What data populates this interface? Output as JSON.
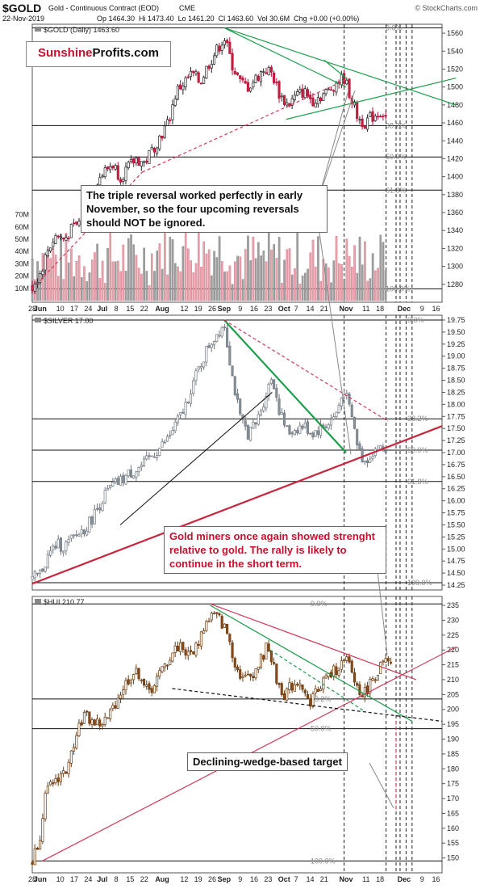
{
  "header": {
    "symbol": "$GOLD",
    "instrument": "Gold - Continuous Contract (EOD)",
    "exchange": "CME",
    "watermark": "© StockCharts.com",
    "date": "22-Nov-2019",
    "ohlc": "Op 1464.30  Hi 1473.40  Lo 1461.20  Cl 1463.60  Vol 30.6M  Chg +0.00 (+0.00%)"
  },
  "logo": {
    "part1": "Sunshine",
    "part2": "Profits.com",
    "part1_color": "#c8102e",
    "part2_color": "#111111"
  },
  "annotations": {
    "gold_note": "The triple reversal worked perfectly in early November, so the four upcoming reversals should NOT be ignored.",
    "miners_note": "Gold miners once again showed strenght relative to gold. The rally is likely to continue in the short term.",
    "wedge_note": "Declining-wedge-based target"
  },
  "x_axis": {
    "labels": [
      {
        "text": "28",
        "d": 0
      },
      {
        "text": "Jun",
        "d": 4
      },
      {
        "text": "10",
        "d": 14
      },
      {
        "text": "17",
        "d": 21
      },
      {
        "text": "24",
        "d": 28
      },
      {
        "text": "Jul",
        "d": 35
      },
      {
        "text": "8",
        "d": 42
      },
      {
        "text": "15",
        "d": 49
      },
      {
        "text": "22",
        "d": 56
      },
      {
        "text": "Aug",
        "d": 65
      },
      {
        "text": "12",
        "d": 76
      },
      {
        "text": "19",
        "d": 83
      },
      {
        "text": "26",
        "d": 90
      },
      {
        "text": "Sep",
        "d": 96
      },
      {
        "text": "9",
        "d": 104
      },
      {
        "text": "16",
        "d": 111
      },
      {
        "text": "23",
        "d": 118
      },
      {
        "text": "Oct",
        "d": 126
      },
      {
        "text": "7",
        "d": 132
      },
      {
        "text": "14",
        "d": 139
      },
      {
        "text": "21",
        "d": 146
      },
      {
        "text": "Nov",
        "d": 157
      },
      {
        "text": "11",
        "d": 167
      },
      {
        "text": "18",
        "d": 174
      },
      {
        "text": "Dec",
        "d": 186
      },
      {
        "text": "9",
        "d": 195
      },
      {
        "text": "16",
        "d": 202
      }
    ],
    "x_range": [
      0,
      205
    ],
    "vertical_dashed_lines": [
      156,
      177,
      182,
      184,
      187,
      190
    ]
  },
  "chart_data": [
    {
      "type": "candlestick",
      "panel": "gold",
      "legend": "$GOLD (Daily) 1463.60",
      "ylim": [
        1260,
        1570
      ],
      "yticks": [
        1280,
        1300,
        1320,
        1340,
        1360,
        1380,
        1400,
        1420,
        1440,
        1460,
        1480,
        1500,
        1520,
        1540,
        1560
      ],
      "volume_ticks": [
        "10M",
        "20M",
        "30M",
        "40M",
        "50M",
        "60M",
        "70M"
      ],
      "volume_range": [
        0,
        75
      ],
      "fib_levels": [
        {
          "label": "0.0%",
          "value": 1566
        },
        {
          "label": "38.2%",
          "value": 1457
        },
        {
          "label": "50.0%",
          "value": 1422
        },
        {
          "label": "61.8%",
          "value": 1385
        },
        {
          "label": "100.0%",
          "value": 1275
        }
      ],
      "path": [
        [
          0,
          1278
        ],
        [
          4,
          1292
        ],
        [
          8,
          1320
        ],
        [
          12,
          1335
        ],
        [
          16,
          1330
        ],
        [
          20,
          1342
        ],
        [
          24,
          1350
        ],
        [
          28,
          1375
        ],
        [
          32,
          1395
        ],
        [
          36,
          1405
        ],
        [
          40,
          1415
        ],
        [
          44,
          1400
        ],
        [
          48,
          1410
        ],
        [
          52,
          1420
        ],
        [
          56,
          1415
        ],
        [
          60,
          1430
        ],
        [
          64,
          1445
        ],
        [
          68,
          1460
        ],
        [
          72,
          1495
        ],
        [
          76,
          1505
        ],
        [
          80,
          1515
        ],
        [
          84,
          1505
        ],
        [
          88,
          1525
        ],
        [
          92,
          1540
        ],
        [
          96,
          1555
        ],
        [
          100,
          1525
        ],
        [
          104,
          1505
        ],
        [
          108,
          1500
        ],
        [
          112,
          1510
        ],
        [
          116,
          1520
        ],
        [
          120,
          1515
        ],
        [
          124,
          1490
        ],
        [
          128,
          1480
        ],
        [
          132,
          1490
        ],
        [
          136,
          1495
        ],
        [
          140,
          1485
        ],
        [
          144,
          1490
        ],
        [
          148,
          1495
        ],
        [
          152,
          1505
        ],
        [
          156,
          1510
        ],
        [
          160,
          1485
        ],
        [
          163,
          1465
        ],
        [
          166,
          1460
        ],
        [
          169,
          1465
        ],
        [
          172,
          1470
        ],
        [
          175,
          1472
        ],
        [
          178,
          1464
        ]
      ],
      "trendlines": [
        {
          "color": "#1a9e4a",
          "from": [
            96,
            1566
          ],
          "to": [
            157,
            1500
          ]
        },
        {
          "color": "#1a9e4a",
          "from": [
            96,
            1566
          ],
          "to": [
            212,
            1480
          ]
        },
        {
          "color": "#1a9e4a",
          "from": [
            127,
            1464
          ],
          "to": [
            212,
            1510
          ]
        },
        {
          "color": "#1a9e4a",
          "from": [
            146,
            1530
          ],
          "to": [
            157,
            1510
          ]
        },
        {
          "color": "#d23a5a",
          "dashed": true,
          "from": [
            55,
            1405
          ],
          "to": [
            157,
            1508
          ]
        },
        {
          "color": "#d23a5a",
          "dashed": true,
          "from": [
            0,
            1275
          ],
          "to": [
            55,
            1405
          ]
        }
      ]
    },
    {
      "type": "candlestick",
      "panel": "silver",
      "legend": "$SILVER 17.00",
      "ylim": [
        14.15,
        19.85
      ],
      "yticks": [
        14.25,
        14.5,
        14.75,
        15.0,
        15.25,
        15.5,
        15.75,
        16.0,
        16.25,
        16.5,
        16.75,
        17.0,
        17.25,
        17.5,
        17.75,
        18.0,
        18.25,
        18.5,
        18.75,
        19.0,
        19.25,
        19.5,
        19.75
      ],
      "fib_levels": [
        {
          "label": "0.0%",
          "value": 19.75
        },
        {
          "label": "38.2%",
          "value": 17.7
        },
        {
          "label": "50.0%",
          "value": 17.05
        },
        {
          "label": "61.8%",
          "value": 16.4
        },
        {
          "label": "100.0%",
          "value": 14.3
        }
      ],
      "path": [
        [
          0,
          14.35
        ],
        [
          4,
          14.5
        ],
        [
          8,
          14.85
        ],
        [
          12,
          15.1
        ],
        [
          16,
          15.05
        ],
        [
          20,
          15.2
        ],
        [
          24,
          15.35
        ],
        [
          28,
          15.5
        ],
        [
          32,
          15.8
        ],
        [
          36,
          16.1
        ],
        [
          40,
          16.3
        ],
        [
          44,
          16.4
        ],
        [
          48,
          16.55
        ],
        [
          52,
          16.65
        ],
        [
          56,
          16.75
        ],
        [
          60,
          16.95
        ],
        [
          64,
          17.1
        ],
        [
          68,
          17.3
        ],
        [
          72,
          17.6
        ],
        [
          76,
          17.9
        ],
        [
          80,
          18.4
        ],
        [
          84,
          18.8
        ],
        [
          88,
          19.2
        ],
        [
          92,
          19.45
        ],
        [
          96,
          19.7
        ],
        [
          100,
          18.6
        ],
        [
          104,
          17.7
        ],
        [
          108,
          17.4
        ],
        [
          112,
          17.6
        ],
        [
          116,
          18.1
        ],
        [
          120,
          18.6
        ],
        [
          124,
          17.8
        ],
        [
          128,
          17.4
        ],
        [
          132,
          17.5
        ],
        [
          136,
          17.55
        ],
        [
          140,
          17.4
        ],
        [
          144,
          17.5
        ],
        [
          148,
          17.6
        ],
        [
          152,
          17.8
        ],
        [
          156,
          18.3
        ],
        [
          160,
          17.7
        ],
        [
          163,
          17.1
        ],
        [
          166,
          16.8
        ],
        [
          169,
          16.95
        ],
        [
          172,
          17.1
        ],
        [
          175,
          17.05
        ],
        [
          178,
          17.0
        ]
      ],
      "trendlines": [
        {
          "color": "#1a9e4a",
          "width": 2.2,
          "from": [
            96,
            19.75
          ],
          "to": [
            157,
            17.0
          ]
        },
        {
          "color": "#c8263e",
          "width": 2.2,
          "from": [
            0,
            14.28
          ],
          "to": [
            205,
            17.55
          ]
        },
        {
          "color": "#111111",
          "width": 1,
          "from": [
            44,
            15.5
          ],
          "to": [
            120,
            18.25
          ]
        },
        {
          "color": "#d23a5a",
          "dashed": true,
          "from": [
            96,
            19.75
          ],
          "to": [
            178,
            17.65
          ]
        }
      ]
    },
    {
      "type": "candlestick",
      "panel": "hui",
      "legend": "$HUI 210.77",
      "ylim": [
        145,
        238
      ],
      "yticks": [
        150,
        155,
        160,
        165,
        170,
        175,
        180,
        185,
        190,
        195,
        200,
        205,
        210,
        215,
        220,
        225,
        230,
        235
      ],
      "fib_levels": [
        {
          "label": "0.0%",
          "value": 235.5
        },
        {
          "label": "38.2%",
          "value": 203.5
        },
        {
          "label": "50.0%",
          "value": 193.5
        },
        {
          "label": "100.0%",
          "value": 149.0
        }
      ],
      "path": [
        [
          0,
          149
        ],
        [
          4,
          158
        ],
        [
          6,
          170
        ],
        [
          10,
          175
        ],
        [
          14,
          178
        ],
        [
          18,
          180
        ],
        [
          22,
          193
        ],
        [
          26,
          198
        ],
        [
          30,
          196
        ],
        [
          34,
          195
        ],
        [
          38,
          197
        ],
        [
          42,
          203
        ],
        [
          46,
          208
        ],
        [
          50,
          212
        ],
        [
          54,
          212
        ],
        [
          58,
          205
        ],
        [
          62,
          210
        ],
        [
          66,
          214
        ],
        [
          70,
          219
        ],
        [
          74,
          222
        ],
        [
          78,
          218
        ],
        [
          82,
          221
        ],
        [
          86,
          228
        ],
        [
          90,
          232
        ],
        [
          94,
          230
        ],
        [
          98,
          225
        ],
        [
          102,
          214
        ],
        [
          106,
          210
        ],
        [
          110,
          212
        ],
        [
          114,
          216
        ],
        [
          118,
          222
        ],
        [
          122,
          210
        ],
        [
          126,
          205
        ],
        [
          130,
          208
        ],
        [
          134,
          210
        ],
        [
          138,
          202
        ],
        [
          142,
          206
        ],
        [
          146,
          210
        ],
        [
          150,
          212
        ],
        [
          154,
          215
        ],
        [
          158,
          216
        ],
        [
          162,
          208
        ],
        [
          166,
          205
        ],
        [
          170,
          210
        ],
        [
          174,
          214
        ],
        [
          177,
          216
        ],
        [
          180,
          213
        ]
      ],
      "trendlines": [
        {
          "color": "#d23a5a",
          "from": [
            89,
            235.5
          ],
          "to": [
            192,
            210
          ]
        },
        {
          "color": "#d23a5a",
          "from": [
            5,
            149
          ],
          "to": [
            212,
            221
          ]
        },
        {
          "color": "#1a9e4a",
          "from": [
            89,
            235
          ],
          "to": [
            190,
            196
          ]
        },
        {
          "color": "#1a9e4a",
          "dashed": true,
          "from": [
            119,
            220
          ],
          "to": [
            167,
            199
          ]
        },
        {
          "color": "#111111",
          "dashed": true,
          "from": [
            70,
            207
          ],
          "to": [
            205,
            196
          ]
        },
        {
          "color": "#d23a5a",
          "dashed": true,
          "from": [
            182,
            196
          ],
          "to": [
            182,
            166
          ]
        }
      ]
    }
  ]
}
